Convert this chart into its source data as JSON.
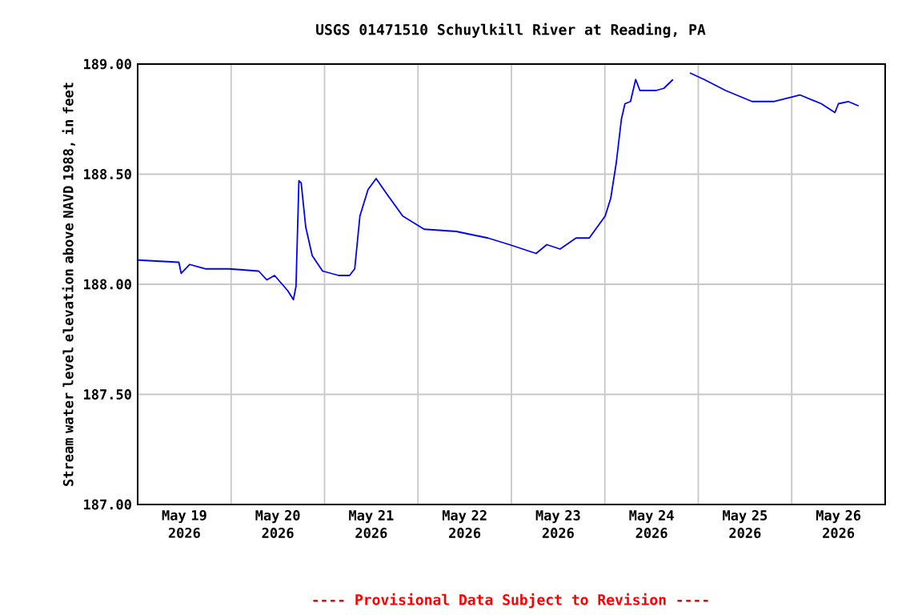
{
  "chart_data": {
    "type": "line",
    "title": "USGS 01471510 Schuylkill River at Reading, PA",
    "ylabel": "Stream water level elevation above NAVD 1988, in feet",
    "annotations": [
      "---- Provisional Data Subject to Revision ----"
    ],
    "xlim": [
      "2026-05-19T00:00",
      "2026-05-27T00:00"
    ],
    "xticks": [
      {
        "value": "2026-05-19T12:00",
        "label": "May 19 2026"
      },
      {
        "value": "2026-05-20T00:00",
        "label": null
      },
      {
        "value": "2026-05-20T12:00",
        "label": "May 20 2026"
      },
      {
        "value": "2026-05-21T00:00",
        "label": null
      },
      {
        "value": "2026-05-21T12:00",
        "label": "May 21 2026"
      },
      {
        "value": "2026-05-22T00:00",
        "label": null
      },
      {
        "value": "2026-05-22T12:00",
        "label": "May 22 2026"
      },
      {
        "value": "2026-05-23T00:00",
        "label": null
      },
      {
        "value": "2026-05-23T12:00",
        "label": "May 23 2026"
      },
      {
        "value": "2026-05-24T00:00",
        "label": null
      },
      {
        "value": "2026-05-24T12:00",
        "label": "May 24 2026"
      },
      {
        "value": "2026-05-25T00:00",
        "label": null
      },
      {
        "value": "2026-05-25T12:00",
        "label": "May 25 2026"
      },
      {
        "value": "2026-05-26T00:00",
        "label": null
      },
      {
        "value": "2026-05-26T12:00",
        "label": "May 26 2026"
      }
    ],
    "ylim": [
      187,
      189
    ],
    "yticks": [
      {
        "value": 187,
        "label": "187.00"
      },
      {
        "value": 187.5,
        "label": "187.50"
      },
      {
        "value": 188,
        "label": "188.00"
      },
      {
        "value": 188.5,
        "label": "188.50"
      },
      {
        "value": 189,
        "label": "189.00"
      }
    ],
    "grid": true,
    "series": [
      {
        "color": "#0000ff",
        "x": [
          "2026-05-19T00:00",
          "2026-05-19T10:35",
          "2026-05-19T11:10",
          "2026-05-19T13:20",
          "2026-05-19T17:25",
          "2026-05-19T23:30",
          "2026-05-20T07:05",
          "2026-05-20T09:10",
          "2026-05-20T11:10",
          "2026-05-20T14:35",
          "2026-05-20T16:00",
          "2026-05-20T16:40",
          "2026-05-20T17:25",
          "2026-05-20T18:00",
          "2026-05-20T19:10",
          "2026-05-20T20:50",
          "2026-05-20T23:30",
          "2026-05-21T03:40",
          "2026-05-21T06:25",
          "2026-05-21T07:45",
          "2026-05-21T09:05",
          "2026-05-21T11:10",
          "2026-05-21T13:15",
          "2026-05-21T16:00",
          "2026-05-21T20:05",
          "2026-05-22T01:35",
          "2026-05-22T09:50",
          "2026-05-22T12:30",
          "2026-05-22T18:00",
          "2026-05-22T23:30",
          "2026-05-23T06:20",
          "2026-05-23T09:05",
          "2026-05-23T12:30",
          "2026-05-23T16:35",
          "2026-05-23T20:00",
          "2026-05-24T00:05",
          "2026-05-24T01:30",
          "2026-05-24T02:55",
          "2026-05-24T04:15",
          "2026-05-24T05:10",
          "2026-05-24T06:35",
          "2026-05-24T07:55",
          "2026-05-24T09:00",
          "2026-05-24T13:10",
          "2026-05-24T15:10",
          "2026-05-24T17:30",
          "2026-05-24T19:40",
          "2026-05-24T21:50",
          "2026-05-25T01:30",
          "2026-05-25T07:00",
          "2026-05-25T13:50",
          "2026-05-25T19:20",
          "2026-05-26T02:05",
          "2026-05-26T07:35",
          "2026-05-26T11:05",
          "2026-05-26T12:00",
          "2026-05-26T14:30",
          "2026-05-26T17:10"
        ],
        "values": [
          188.11,
          188.1,
          188.05,
          188.09,
          188.07,
          188.07,
          188.06,
          188.02,
          188.04,
          187.97,
          187.93,
          187.99,
          188.47,
          188.46,
          188.26,
          188.13,
          188.06,
          188.04,
          188.04,
          188.07,
          188.31,
          188.43,
          188.48,
          188.41,
          188.31,
          188.25,
          188.24,
          188.23,
          188.21,
          188.18,
          188.14,
          188.18,
          188.16,
          188.21,
          188.21,
          188.31,
          188.39,
          188.55,
          188.75,
          188.82,
          188.83,
          188.93,
          188.88,
          188.88,
          188.89,
          188.93,
          null,
          188.96,
          188.93,
          188.88,
          188.83,
          188.83,
          188.86,
          188.82,
          188.78,
          188.82,
          188.83,
          188.81
        ]
      }
    ]
  }
}
